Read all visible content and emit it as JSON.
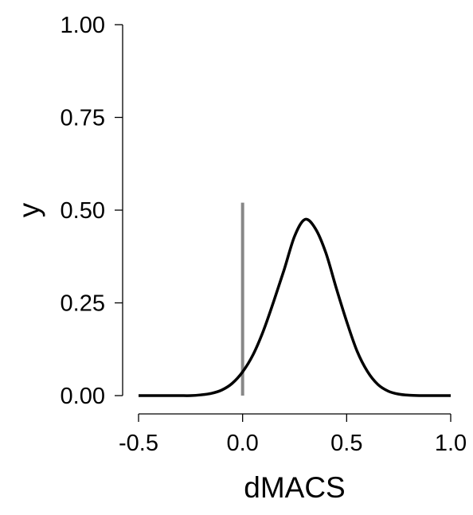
{
  "chart_data": {
    "type": "line",
    "title": "",
    "xlabel": "dMACS",
    "ylabel": "y",
    "xlim": [
      -0.5,
      1.0
    ],
    "ylim": [
      0.0,
      1.0
    ],
    "x_ticks": [
      "-0.5",
      "0.0",
      "0.5",
      "1.0"
    ],
    "y_ticks": [
      "0.00",
      "0.25",
      "0.50",
      "0.75",
      "1.00"
    ],
    "grid": false,
    "legend": "none",
    "series": [
      {
        "color": "#000000",
        "x": [
          -0.5,
          -0.45,
          -0.4,
          -0.35,
          -0.3,
          -0.25,
          -0.2,
          -0.15,
          -0.1,
          -0.05,
          0.0,
          0.05,
          0.1,
          0.15,
          0.2,
          0.25,
          0.3,
          0.35,
          0.4,
          0.45,
          0.5,
          0.55,
          0.6,
          0.65,
          0.7,
          0.75,
          0.8,
          0.85,
          0.9,
          0.95,
          1.0
        ],
        "y": [
          0.0,
          0.0,
          0.0,
          0.0,
          0.0,
          0.0,
          0.002,
          0.006,
          0.015,
          0.033,
          0.064,
          0.11,
          0.175,
          0.255,
          0.34,
          0.43,
          0.475,
          0.45,
          0.385,
          0.29,
          0.2,
          0.12,
          0.065,
          0.03,
          0.012,
          0.004,
          0.001,
          0.0,
          0.0,
          0.0,
          0.0
        ]
      }
    ],
    "reference_line": {
      "x": 0.0,
      "y_from": 0.0,
      "y_to": 0.52,
      "color": "#888888"
    }
  }
}
